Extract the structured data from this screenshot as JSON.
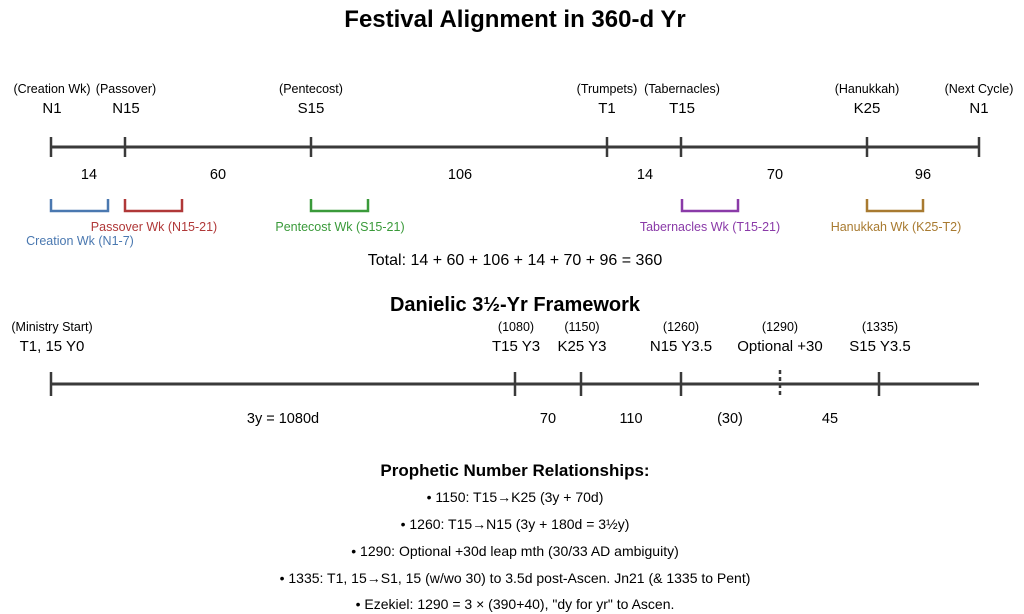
{
  "title": "Festival Alignment in 360-d Yr",
  "timeline1": {
    "markers": [
      {
        "name": "(Creation Wk)",
        "code": "N1"
      },
      {
        "name": "(Passover)",
        "code": "N15"
      },
      {
        "name": "(Pentecost)",
        "code": "S15"
      },
      {
        "name": "(Trumpets)",
        "code": "T1"
      },
      {
        "name": "(Tabernacles)",
        "code": "T15"
      },
      {
        "name": "(Hanukkah)",
        "code": "K25"
      },
      {
        "name": "(Next Cycle)",
        "code": "N1"
      }
    ],
    "segments": [
      "14",
      "60",
      "106",
      "14",
      "70",
      "96"
    ],
    "weeks": [
      {
        "label": "Creation Wk (N1-7)",
        "color": "#4a78b0"
      },
      {
        "label": "Passover Wk (N15-21)",
        "color": "#b03838"
      },
      {
        "label": "Pentecost Wk (S15-21)",
        "color": "#3a9a3a"
      },
      {
        "label": "Tabernacles Wk (T15-21)",
        "color": "#8a3aa8"
      },
      {
        "label": "Hanukkah Wk (K25-T2)",
        "color": "#a87a30"
      }
    ],
    "total": "Total: 14 + 60 + 106 + 14 + 70 + 96 = 360"
  },
  "timeline2": {
    "title": "Danielic 3½-Yr Framework",
    "markers": [
      {
        "name": "(Ministry Start)",
        "code": "T1, 15 Y0"
      },
      {
        "name": "(1080)",
        "code": "T15 Y3"
      },
      {
        "name": "(1150)",
        "code": "K25 Y3"
      },
      {
        "name": "(1260)",
        "code": "N15 Y3.5"
      },
      {
        "name": "(1290)",
        "code": "Optional +30"
      },
      {
        "name": "(1335)",
        "code": "S15 Y3.5"
      }
    ],
    "segments": [
      "3y = 1080d",
      "70",
      "110",
      "(30)",
      "45"
    ]
  },
  "relationships": {
    "heading": "Prophetic Number Relationships:",
    "items": [
      "• 1150: T15→K25 (3y + 70d)",
      "• 1260: T15→N15 (3y + 180d = 3½y)",
      "• 1290: Optional +30d leap mth (30/33 AD ambiguity)",
      "• 1335: T1, 15→S1, 15 (w/wo 30) to 3.5d post-Ascen. Jn21 (& 1335 to Pent)",
      "• Ezekiel: 1290 = 3 × (390+40), \"dy for yr\" to Ascen."
    ]
  }
}
